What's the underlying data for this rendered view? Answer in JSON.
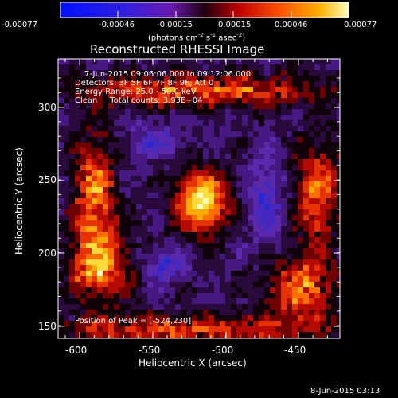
{
  "colorbar": {
    "ticks": [
      "-0.00077",
      "-0.00046",
      "-0.00015",
      "0.00015",
      "0.00046",
      "0.00077"
    ],
    "units_prefix": "(photons cm",
    "units_exp1": "-2",
    "units_mid1": " s",
    "units_exp2": "-1",
    "units_mid2": " asec",
    "units_exp3": "-2",
    "units_suffix": ")"
  },
  "title": "Reconstructed RHESSI Image",
  "annotations": {
    "time_range": "7-Jun-2015 09:06:06.000 to 09:12:06.000",
    "detectors": "Detectors: 3F 5F 6F 7F 8F 9F, Att 0",
    "energy": "Energy Range: 25.0 - 50.0 keV",
    "clean": "Clean     Total counts: 3.93E+04",
    "peak": "Position of Peak = [-524,230]"
  },
  "axes": {
    "xlabel": "Heliocentric X (arcsec)",
    "ylabel": "Heliocentric Y (arcsec)",
    "xticks": [
      "-600",
      "-550",
      "-500",
      "-450"
    ],
    "yticks": [
      "150",
      "200",
      "250",
      "300"
    ]
  },
  "footer_date": "8-Jun-2015 03:13"
}
